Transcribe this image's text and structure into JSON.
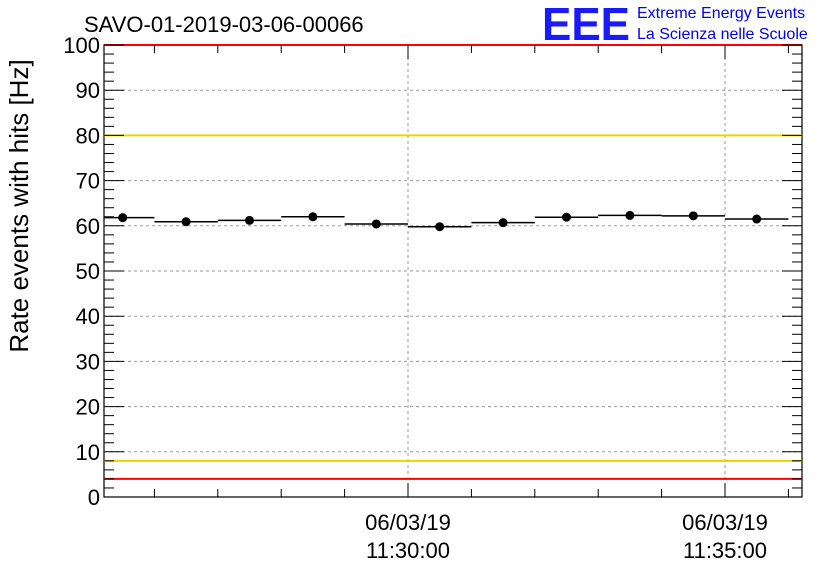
{
  "chart_data": {
    "type": "scatter",
    "title": "SAVO-01-2019-03-06-00066",
    "ylabel": "Rate events with hits [Hz]",
    "xlabel": "",
    "ylim": [
      0,
      100
    ],
    "y_ticks": [
      0,
      10,
      20,
      30,
      40,
      50,
      60,
      70,
      80,
      90,
      100
    ],
    "x_ticks": [
      {
        "date": "06/03/19",
        "time": "11:30:00"
      },
      {
        "date": "06/03/19",
        "time": "11:35:00"
      }
    ],
    "grid": true,
    "reference_lines": [
      {
        "value": 100,
        "color": "#ff0000"
      },
      {
        "value": 80,
        "color": "#f2d000"
      },
      {
        "value": 8,
        "color": "#f2d000"
      },
      {
        "value": 4,
        "color": "#ff0000"
      }
    ],
    "series": [
      {
        "x": [
          "11:25:30",
          "11:26:30",
          "11:27:30",
          "11:28:30",
          "11:29:30",
          "11:30:30",
          "11:31:30",
          "11:32:30",
          "11:33:30",
          "11:34:30",
          "11:35:30"
        ],
        "values": [
          61.8,
          60.9,
          61.2,
          62.0,
          60.4,
          59.8,
          60.7,
          61.9,
          62.3,
          62.2,
          61.5
        ]
      }
    ],
    "marker_color": "#000000"
  },
  "logo": {
    "letters": "EEE",
    "line1": "Extreme Energy Events",
    "line2": "La Scienza nelle Scuole"
  }
}
